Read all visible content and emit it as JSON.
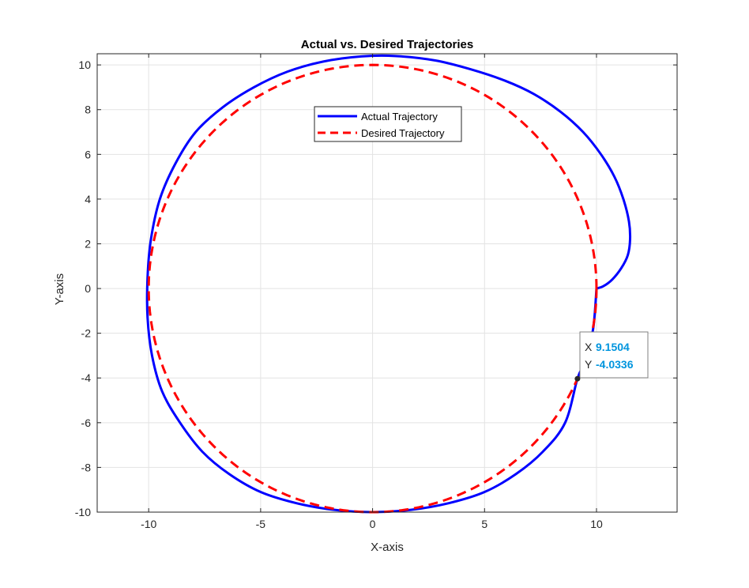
{
  "chart_data": {
    "type": "line",
    "title": "Actual vs. Desired Trajectories",
    "xlabel": "X-axis",
    "ylabel": "Y-axis",
    "xlim": [
      -12.3,
      13.6
    ],
    "ylim": [
      -10,
      10.5
    ],
    "xticks": [
      -10,
      -5,
      0,
      5,
      10
    ],
    "yticks": [
      -10,
      -8,
      -6,
      -4,
      -2,
      0,
      2,
      4,
      6,
      8,
      10
    ],
    "grid": true,
    "legend_position": "upper center",
    "series": [
      {
        "name": "Actual Trajectory",
        "color": "#0000ff",
        "style": "solid",
        "x": [
          10.0,
          10.3,
          10.7,
          11.1,
          11.4,
          11.5,
          11.45,
          11.2,
          10.8,
          10.2,
          9.4,
          8.4,
          7.2,
          5.9,
          4.4,
          2.8,
          1.0,
          -0.5,
          -2.2,
          -3.8,
          -5.3,
          -6.7,
          -7.9,
          -8.8,
          -9.5,
          -9.9,
          -10.05,
          -10.05,
          -9.85,
          -9.4,
          -8.6,
          -7.6,
          -6.4,
          -5.0,
          -3.4,
          -1.7,
          0.0,
          1.7,
          3.4,
          5.0,
          6.4,
          7.6,
          8.6,
          9.15,
          9.5,
          9.85,
          10.0
        ],
        "y": [
          0.0,
          0.1,
          0.4,
          0.9,
          1.5,
          2.2,
          3.0,
          4.0,
          5.0,
          6.0,
          7.0,
          7.9,
          8.7,
          9.3,
          9.8,
          10.2,
          10.4,
          10.38,
          10.15,
          9.7,
          9.0,
          8.1,
          7.0,
          5.6,
          4.0,
          2.2,
          0.5,
          -1.3,
          -3.0,
          -4.6,
          -6.0,
          -7.3,
          -8.3,
          -9.1,
          -9.6,
          -9.9,
          -10.0,
          -9.9,
          -9.6,
          -9.1,
          -8.3,
          -7.3,
          -6.0,
          -4.03,
          -3.2,
          -1.8,
          0.0
        ]
      },
      {
        "name": "Desired Trajectory",
        "color": "#ff0000",
        "style": "dashed",
        "circle": {
          "cx": 0,
          "cy": 0,
          "r": 10
        }
      }
    ],
    "datatip": {
      "x_label": "X",
      "x_value": "9.1504",
      "y_label": "Y",
      "y_value": "-4.0336",
      "x": 9.1504,
      "y": -4.0336
    }
  }
}
